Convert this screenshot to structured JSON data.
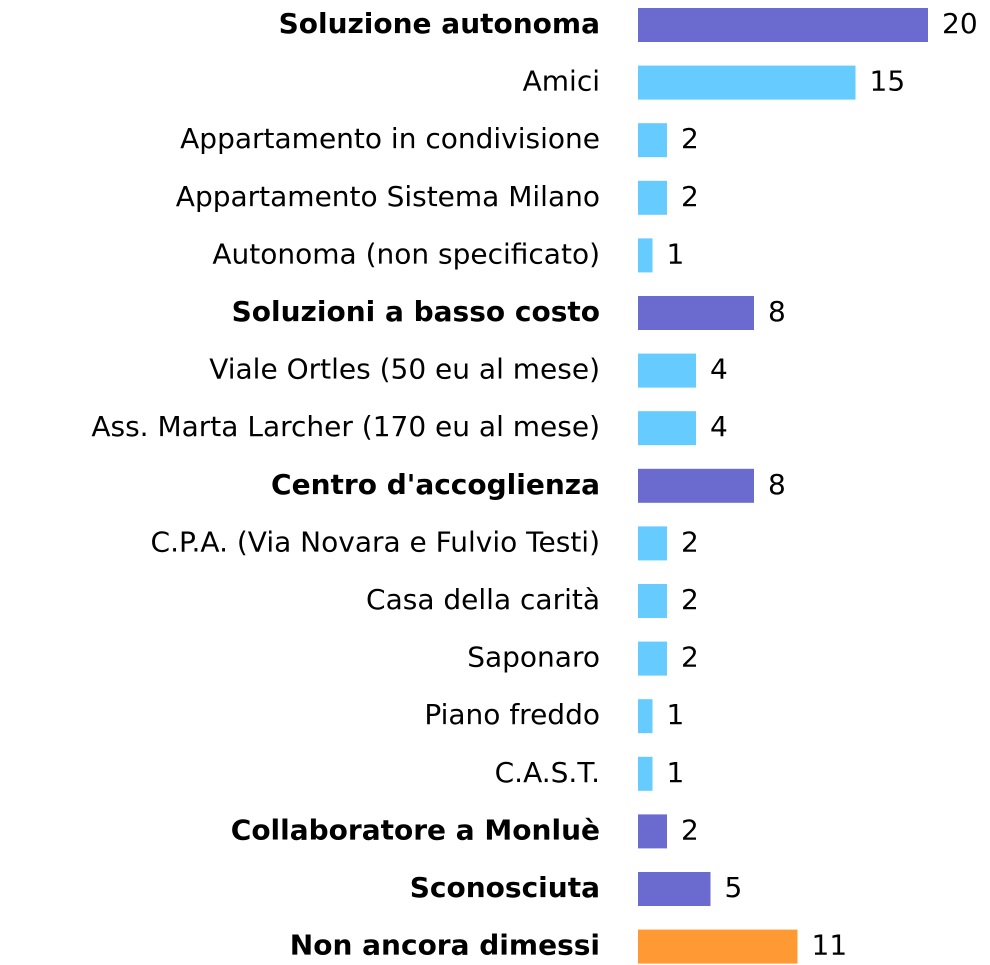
{
  "chart_data": {
    "type": "bar",
    "orientation": "horizontal",
    "categories": [
      "Soluzione autonoma",
      "Amici",
      "Appartamento in condivisione",
      "Appartamento Sistema Milano",
      "Autonoma (non specificato)",
      "Soluzioni a basso costo",
      "Viale Ortles (50 eu al mese)",
      "Ass. Marta Larcher (170 eu al mese)",
      "Centro d'accoglienza",
      "C.P.A. (Via Novara e Fulvio Testi)",
      "Casa della carità",
      "Saponaro",
      "Piano freddo",
      "C.A.S.T.",
      "Collaboratore a Monluè",
      "Sconosciuta",
      "Non ancora dimessi"
    ],
    "values": [
      20,
      15,
      2,
      2,
      1,
      8,
      4,
      4,
      8,
      2,
      2,
      2,
      1,
      1,
      2,
      5,
      11
    ],
    "colors": [
      "#6b6bcf",
      "#66ccff",
      "#66ccff",
      "#66ccff",
      "#66ccff",
      "#6b6bcf",
      "#66ccff",
      "#66ccff",
      "#6b6bcf",
      "#66ccff",
      "#66ccff",
      "#66ccff",
      "#66ccff",
      "#66ccff",
      "#6b6bcf",
      "#6b6bcf",
      "#ff9933"
    ],
    "bold": [
      true,
      false,
      false,
      false,
      false,
      true,
      false,
      false,
      true,
      false,
      false,
      false,
      false,
      false,
      true,
      true,
      true
    ]
  }
}
